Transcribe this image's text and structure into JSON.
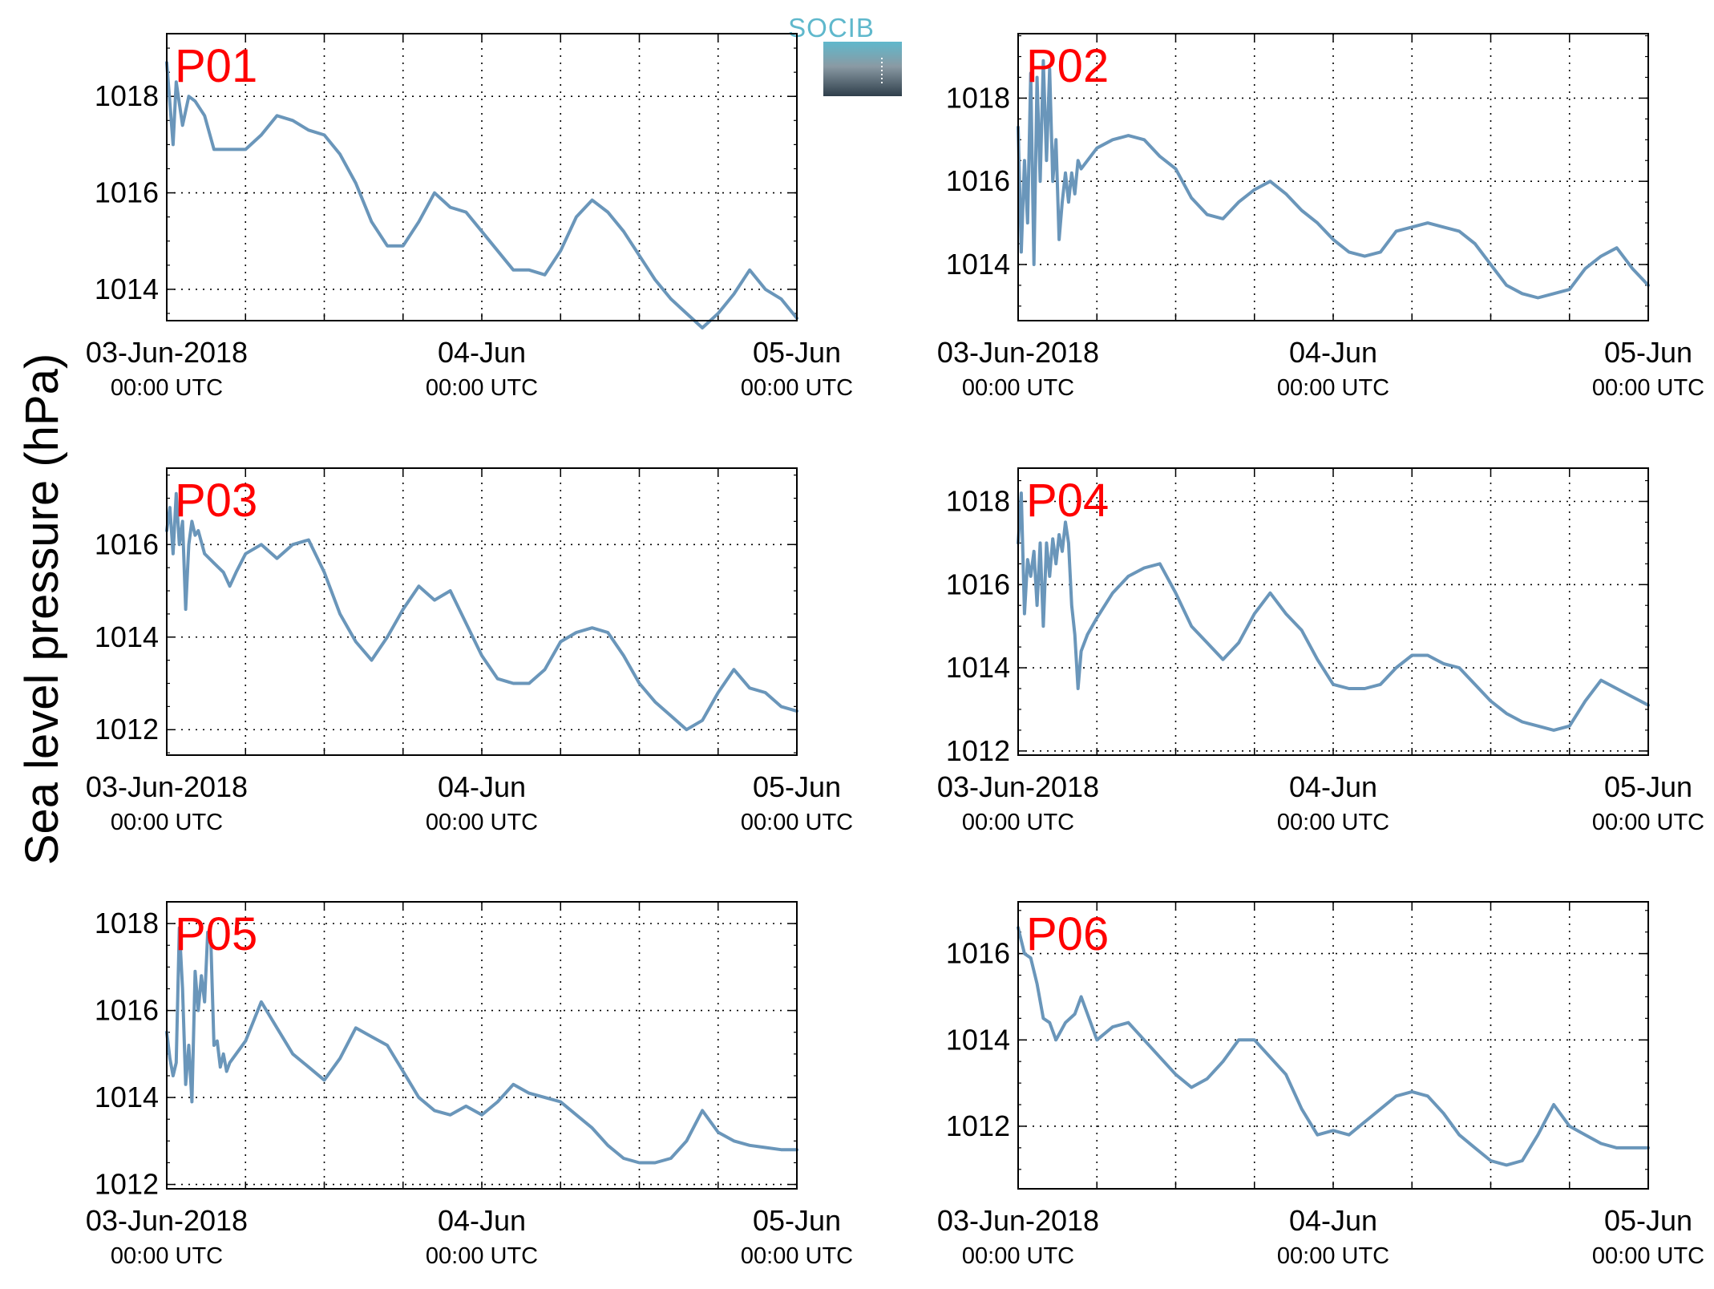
{
  "figure": {
    "ylabel": "Sea level pressure (hPa)",
    "logo_text": "SOCIB",
    "colors": {
      "line": "#6a96ba",
      "panel_label": "#ff0000",
      "grid": "#000000",
      "logo_cyan": "#5fb8cc",
      "logo_dark": "#2f3f4b"
    }
  },
  "chart_data": [
    {
      "type": "line",
      "name": "P01",
      "x_ticks": [
        {
          "pos": 0,
          "label": "03-Jun-2018",
          "sub": "00:00 UTC"
        },
        {
          "pos": 1,
          "label": "04-Jun",
          "sub": "00:00 UTC"
        },
        {
          "pos": 2,
          "label": "05-Jun",
          "sub": "00:00 UTC"
        }
      ],
      "xlim_days": [
        0,
        2
      ],
      "ylim": [
        1013.35,
        1019.3
      ],
      "yticks": [
        1014,
        1016,
        1018
      ],
      "grid": true,
      "series": [
        {
          "x_days": [
            0,
            0.02,
            0.03,
            0.05,
            0.07,
            0.09,
            0.12,
            0.15,
            0.2,
            0.25,
            0.3,
            0.35,
            0.4,
            0.45,
            0.5,
            0.55,
            0.6,
            0.65,
            0.7,
            0.75,
            0.8,
            0.85,
            0.9,
            0.95,
            1.0,
            1.05,
            1.1,
            1.15,
            1.2,
            1.25,
            1.3,
            1.35,
            1.4,
            1.45,
            1.5,
            1.55,
            1.6,
            1.65,
            1.7,
            1.75,
            1.8,
            1.85,
            1.9,
            1.95,
            2.0
          ],
          "y": [
            1018.7,
            1017.0,
            1018.3,
            1017.4,
            1018.0,
            1017.9,
            1017.6,
            1016.9,
            1016.9,
            1016.9,
            1017.2,
            1017.6,
            1017.5,
            1017.3,
            1017.2,
            1016.8,
            1016.2,
            1015.4,
            1014.9,
            1014.9,
            1015.4,
            1016.0,
            1015.7,
            1015.6,
            1015.2,
            1014.8,
            1014.4,
            1014.4,
            1014.3,
            1014.8,
            1015.5,
            1015.85,
            1015.6,
            1015.2,
            1014.7,
            1014.2,
            1013.8,
            1013.5,
            1013.2,
            1013.5,
            1013.9,
            1014.4,
            1014.0,
            1013.8,
            1013.4
          ]
        }
      ]
    },
    {
      "type": "line",
      "name": "P02",
      "x_ticks": [
        {
          "pos": 0,
          "label": "03-Jun-2018",
          "sub": "00:00 UTC"
        },
        {
          "pos": 1,
          "label": "04-Jun",
          "sub": "00:00 UTC"
        },
        {
          "pos": 2,
          "label": "05-Jun",
          "sub": "00:00 UTC"
        }
      ],
      "xlim_days": [
        0,
        2
      ],
      "ylim": [
        1012.65,
        1019.55
      ],
      "yticks": [
        1014,
        1016,
        1018
      ],
      "grid": true,
      "series": [
        {
          "x_days": [
            0,
            0.01,
            0.02,
            0.03,
            0.04,
            0.05,
            0.06,
            0.07,
            0.08,
            0.09,
            0.1,
            0.11,
            0.12,
            0.13,
            0.14,
            0.15,
            0.16,
            0.17,
            0.18,
            0.19,
            0.2,
            0.22,
            0.25,
            0.3,
            0.35,
            0.4,
            0.45,
            0.5,
            0.55,
            0.6,
            0.65,
            0.7,
            0.75,
            0.8,
            0.85,
            0.9,
            0.95,
            1.0,
            1.05,
            1.1,
            1.15,
            1.2,
            1.25,
            1.3,
            1.35,
            1.4,
            1.45,
            1.5,
            1.55,
            1.6,
            1.65,
            1.7,
            1.75,
            1.8,
            1.85,
            1.9,
            1.95,
            2.0
          ],
          "y": [
            1017.3,
            1014.3,
            1016.5,
            1015.0,
            1018.6,
            1014.0,
            1018.5,
            1016.0,
            1018.9,
            1016.5,
            1018.7,
            1016.0,
            1017.0,
            1014.6,
            1015.5,
            1016.2,
            1015.5,
            1016.2,
            1015.7,
            1016.5,
            1016.3,
            1016.5,
            1016.8,
            1017.0,
            1017.1,
            1017.0,
            1016.6,
            1016.3,
            1015.6,
            1015.2,
            1015.1,
            1015.5,
            1015.8,
            1016.0,
            1015.7,
            1015.3,
            1015.0,
            1014.6,
            1014.3,
            1014.2,
            1014.3,
            1014.8,
            1014.9,
            1015.0,
            1014.9,
            1014.8,
            1014.5,
            1014.0,
            1013.5,
            1013.3,
            1013.2,
            1013.3,
            1013.4,
            1013.9,
            1014.2,
            1014.4,
            1013.9,
            1013.5
          ]
        }
      ]
    },
    {
      "type": "line",
      "name": "P03",
      "x_ticks": [
        {
          "pos": 0,
          "label": "03-Jun-2018",
          "sub": "00:00 UTC"
        },
        {
          "pos": 1,
          "label": "04-Jun",
          "sub": "00:00 UTC"
        },
        {
          "pos": 2,
          "label": "05-Jun",
          "sub": "00:00 UTC"
        }
      ],
      "xlim_days": [
        0,
        2
      ],
      "ylim": [
        1011.45,
        1017.65
      ],
      "yticks": [
        1012,
        1014,
        1016
      ],
      "grid": true,
      "series": [
        {
          "x_days": [
            0,
            0.01,
            0.02,
            0.03,
            0.04,
            0.05,
            0.06,
            0.07,
            0.08,
            0.09,
            0.1,
            0.12,
            0.15,
            0.18,
            0.2,
            0.22,
            0.25,
            0.3,
            0.35,
            0.4,
            0.45,
            0.5,
            0.55,
            0.6,
            0.65,
            0.7,
            0.75,
            0.8,
            0.85,
            0.9,
            0.95,
            1.0,
            1.05,
            1.1,
            1.15,
            1.2,
            1.25,
            1.3,
            1.35,
            1.4,
            1.45,
            1.5,
            1.55,
            1.6,
            1.65,
            1.7,
            1.75,
            1.8,
            1.85,
            1.9,
            1.95,
            2.0
          ],
          "y": [
            1016.3,
            1016.8,
            1015.8,
            1017.1,
            1016.0,
            1016.5,
            1014.6,
            1016.0,
            1016.5,
            1016.2,
            1016.3,
            1015.8,
            1015.6,
            1015.4,
            1015.1,
            1015.4,
            1015.8,
            1016.0,
            1015.7,
            1016.0,
            1016.1,
            1015.4,
            1014.5,
            1013.9,
            1013.5,
            1014.0,
            1014.6,
            1015.1,
            1014.8,
            1015.0,
            1014.3,
            1013.6,
            1013.1,
            1013.0,
            1013.0,
            1013.3,
            1013.9,
            1014.1,
            1014.2,
            1014.1,
            1013.6,
            1013.0,
            1012.6,
            1012.3,
            1012.0,
            1012.2,
            1012.8,
            1013.3,
            1012.9,
            1012.8,
            1012.5,
            1012.4
          ]
        }
      ]
    },
    {
      "type": "line",
      "name": "P04",
      "x_ticks": [
        {
          "pos": 0,
          "label": "03-Jun-2018",
          "sub": "00:00 UTC"
        },
        {
          "pos": 1,
          "label": "04-Jun",
          "sub": "00:00 UTC"
        },
        {
          "pos": 2,
          "label": "05-Jun",
          "sub": "00:00 UTC"
        }
      ],
      "xlim_days": [
        0,
        2
      ],
      "ylim": [
        1011.9,
        1018.8
      ],
      "yticks": [
        1012,
        1014,
        1016,
        1018
      ],
      "grid": true,
      "series": [
        {
          "x_days": [
            0,
            0.01,
            0.02,
            0.03,
            0.04,
            0.05,
            0.06,
            0.07,
            0.08,
            0.09,
            0.1,
            0.11,
            0.12,
            0.13,
            0.14,
            0.15,
            0.16,
            0.17,
            0.18,
            0.19,
            0.2,
            0.22,
            0.25,
            0.3,
            0.35,
            0.4,
            0.45,
            0.5,
            0.55,
            0.6,
            0.65,
            0.7,
            0.75,
            0.8,
            0.85,
            0.9,
            0.95,
            1.0,
            1.05,
            1.1,
            1.15,
            1.2,
            1.25,
            1.3,
            1.35,
            1.4,
            1.45,
            1.5,
            1.55,
            1.6,
            1.65,
            1.7,
            1.75,
            1.8,
            1.85,
            1.9,
            1.95,
            2.0
          ],
          "y": [
            1017.0,
            1018.2,
            1015.3,
            1016.6,
            1016.2,
            1016.8,
            1015.5,
            1017.0,
            1015.0,
            1017.0,
            1016.2,
            1017.1,
            1016.5,
            1017.2,
            1016.8,
            1017.5,
            1017.0,
            1015.5,
            1014.8,
            1013.5,
            1014.4,
            1014.8,
            1015.2,
            1015.8,
            1016.2,
            1016.4,
            1016.5,
            1015.8,
            1015.0,
            1014.6,
            1014.2,
            1014.6,
            1015.3,
            1015.8,
            1015.3,
            1014.9,
            1014.2,
            1013.6,
            1013.5,
            1013.5,
            1013.6,
            1014.0,
            1014.3,
            1014.3,
            1014.1,
            1014.0,
            1013.6,
            1013.2,
            1012.9,
            1012.7,
            1012.6,
            1012.5,
            1012.6,
            1013.2,
            1013.7,
            1013.5,
            1013.3,
            1013.1
          ]
        }
      ]
    },
    {
      "type": "line",
      "name": "P05",
      "x_ticks": [
        {
          "pos": 0,
          "label": "03-Jun-2018",
          "sub": "00:00 UTC"
        },
        {
          "pos": 1,
          "label": "04-Jun",
          "sub": "00:00 UTC"
        },
        {
          "pos": 2,
          "label": "05-Jun",
          "sub": "00:00 UTC"
        }
      ],
      "xlim_days": [
        0,
        2
      ],
      "ylim": [
        1011.9,
        1018.5
      ],
      "yticks": [
        1012,
        1014,
        1016,
        1018
      ],
      "grid": true,
      "series": [
        {
          "x_days": [
            0,
            0.01,
            0.02,
            0.03,
            0.04,
            0.05,
            0.06,
            0.07,
            0.08,
            0.09,
            0.1,
            0.11,
            0.12,
            0.13,
            0.14,
            0.15,
            0.16,
            0.17,
            0.18,
            0.19,
            0.2,
            0.22,
            0.25,
            0.3,
            0.35,
            0.4,
            0.45,
            0.5,
            0.55,
            0.6,
            0.65,
            0.7,
            0.75,
            0.8,
            0.85,
            0.9,
            0.95,
            1.0,
            1.05,
            1.1,
            1.15,
            1.2,
            1.25,
            1.3,
            1.35,
            1.4,
            1.45,
            1.5,
            1.55,
            1.6,
            1.65,
            1.7,
            1.75,
            1.8,
            1.85,
            1.9,
            1.95,
            2.0
          ],
          "y": [
            1015.5,
            1014.9,
            1014.5,
            1014.8,
            1017.9,
            1016.5,
            1014.3,
            1015.2,
            1013.9,
            1016.9,
            1016.0,
            1016.8,
            1016.2,
            1017.8,
            1017.6,
            1015.2,
            1015.3,
            1014.7,
            1015.0,
            1014.6,
            1014.8,
            1015.0,
            1015.3,
            1016.2,
            1015.6,
            1015.0,
            1014.7,
            1014.4,
            1014.9,
            1015.6,
            1015.4,
            1015.2,
            1014.6,
            1014.0,
            1013.7,
            1013.6,
            1013.8,
            1013.6,
            1013.9,
            1014.3,
            1014.1,
            1014.0,
            1013.9,
            1013.6,
            1013.3,
            1012.9,
            1012.6,
            1012.5,
            1012.5,
            1012.6,
            1013.0,
            1013.7,
            1013.2,
            1013.0,
            1012.9,
            1012.85,
            1012.8,
            1012.8
          ]
        }
      ]
    },
    {
      "type": "line",
      "name": "P06",
      "x_ticks": [
        {
          "pos": 0,
          "label": "03-Jun-2018",
          "sub": "00:00 UTC"
        },
        {
          "pos": 1,
          "label": "04-Jun",
          "sub": "00:00 UTC"
        },
        {
          "pos": 2,
          "label": "05-Jun",
          "sub": "00:00 UTC"
        }
      ],
      "xlim_days": [
        0,
        2
      ],
      "ylim": [
        1010.55,
        1017.2
      ],
      "yticks": [
        1012,
        1014,
        1016
      ],
      "grid": true,
      "series": [
        {
          "x_days": [
            0,
            0.02,
            0.04,
            0.06,
            0.08,
            0.1,
            0.12,
            0.15,
            0.18,
            0.2,
            0.22,
            0.25,
            0.3,
            0.35,
            0.4,
            0.45,
            0.5,
            0.55,
            0.6,
            0.65,
            0.7,
            0.75,
            0.8,
            0.85,
            0.9,
            0.95,
            1.0,
            1.05,
            1.1,
            1.15,
            1.2,
            1.25,
            1.3,
            1.35,
            1.4,
            1.45,
            1.5,
            1.55,
            1.6,
            1.65,
            1.7,
            1.75,
            1.8,
            1.85,
            1.9,
            1.95,
            2.0
          ],
          "y": [
            1016.6,
            1016.0,
            1015.9,
            1015.3,
            1014.5,
            1014.4,
            1014.0,
            1014.4,
            1014.6,
            1015.0,
            1014.6,
            1014.0,
            1014.3,
            1014.4,
            1014.0,
            1013.6,
            1013.2,
            1012.9,
            1013.1,
            1013.5,
            1014.0,
            1014.0,
            1013.6,
            1013.2,
            1012.4,
            1011.8,
            1011.9,
            1011.8,
            1012.1,
            1012.4,
            1012.7,
            1012.8,
            1012.7,
            1012.3,
            1011.8,
            1011.5,
            1011.2,
            1011.1,
            1011.2,
            1011.8,
            1012.5,
            1012.0,
            1011.8,
            1011.6,
            1011.5,
            1011.5,
            1011.5
          ]
        }
      ]
    }
  ]
}
